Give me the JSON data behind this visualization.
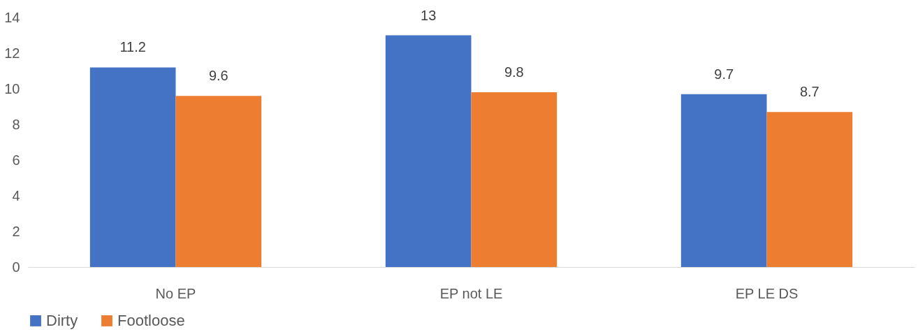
{
  "chart_data": {
    "type": "bar",
    "categories": [
      "No EP",
      "EP not LE",
      "EP LE DS"
    ],
    "series": [
      {
        "name": "Dirty",
        "color": "#4472c4",
        "values": [
          11.2,
          13,
          9.7
        ]
      },
      {
        "name": "Footloose",
        "color": "#ed7d31",
        "values": [
          9.6,
          9.8,
          8.7
        ]
      }
    ],
    "ylim": [
      0,
      14
    ],
    "yticks": [
      0,
      2,
      4,
      6,
      8,
      10,
      12,
      14
    ],
    "grid": false,
    "legend": "bottom",
    "data_labels": true
  }
}
